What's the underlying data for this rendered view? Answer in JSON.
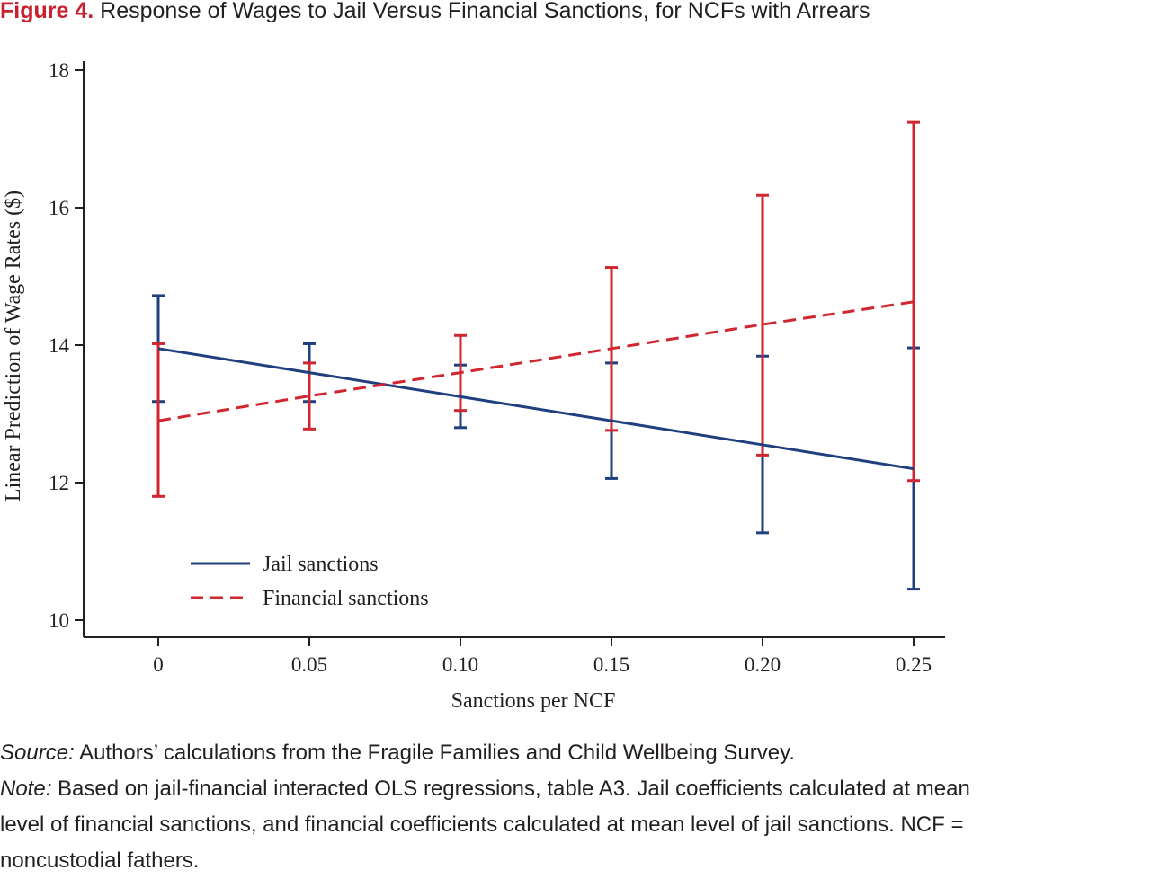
{
  "figure": {
    "label": "Figure 4.",
    "title": "Response of Wages to Jail Versus Financial Sanctions, for NCFs with Arrears"
  },
  "chart_data": {
    "type": "line",
    "xlabel": "Sanctions per NCF",
    "ylabel": "Linear Prediction of Wage Rates ($)",
    "x": [
      0,
      0.05,
      0.1,
      0.15,
      0.2,
      0.25
    ],
    "x_tick_labels": [
      "0",
      "0.05",
      "0.10",
      "0.15",
      "0.20",
      "0.25"
    ],
    "y_ticks": [
      10,
      12,
      14,
      16,
      18
    ],
    "y_tick_labels": [
      "10",
      "12",
      "14",
      "16",
      "18"
    ],
    "xlim": [
      -0.025,
      0.262
    ],
    "ylim": [
      9.75,
      18.2
    ],
    "grid": false,
    "legend_position": "bottom-left",
    "series": [
      {
        "name": "Jail sanctions",
        "color": "#1f3f7f",
        "style": "solid",
        "values": [
          13.95,
          13.6,
          13.25,
          12.9,
          12.55,
          12.2
        ],
        "ci_low": [
          13.18,
          13.18,
          12.8,
          12.06,
          11.27,
          10.45
        ],
        "ci_high": [
          14.72,
          14.02,
          13.71,
          13.74,
          13.84,
          13.96
        ]
      },
      {
        "name": "Financial sanctions",
        "color": "#d0262f",
        "style": "dashed",
        "values": [
          12.9,
          13.26,
          13.6,
          13.95,
          14.3,
          14.63
        ],
        "ci_low": [
          11.8,
          12.78,
          13.05,
          12.76,
          12.4,
          12.03
        ],
        "ci_high": [
          14.02,
          13.74,
          14.14,
          15.13,
          16.18,
          17.24
        ]
      }
    ]
  },
  "notes": {
    "source_lead": "Source:",
    "source_text": " Authors’ calculations from the Fragile Families and Child Wellbeing Survey.",
    "note_lead": "Note:",
    "note_line1": " Based on jail-financial interacted OLS regressions, table A3. Jail coefficients calculated at mean",
    "note_line2": "level of financial sanctions, and financial coefficients calculated at mean level of jail sanctions. NCF =",
    "note_line3": "noncustodial fathers."
  }
}
